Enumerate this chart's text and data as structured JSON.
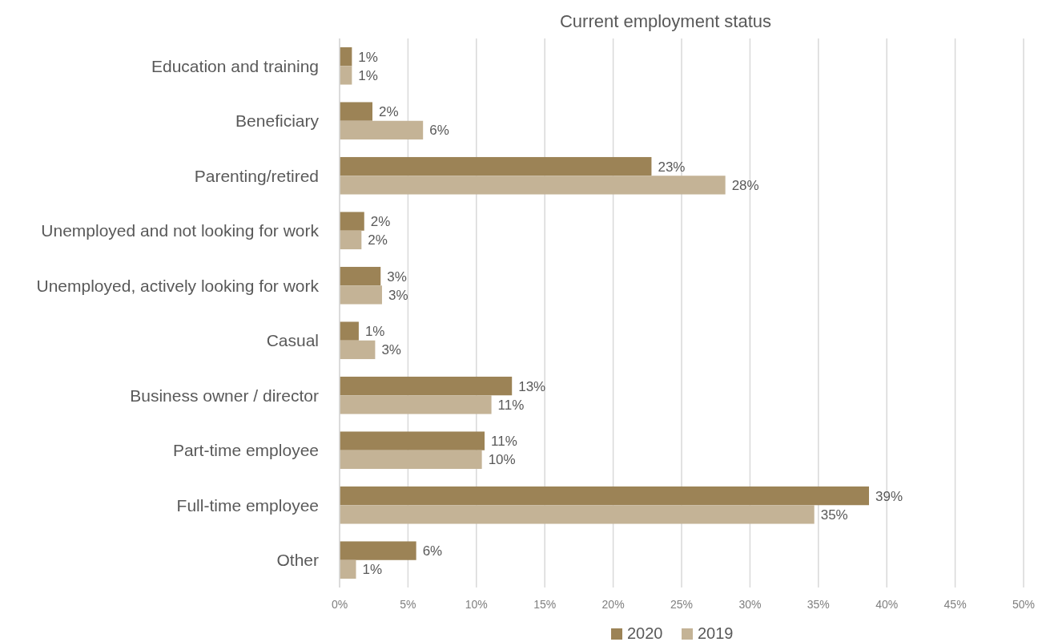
{
  "chart_data": {
    "type": "bar",
    "orientation": "horizontal",
    "title": "Current employment status",
    "categories": [
      "Education and training",
      "Beneficiary",
      "Parenting/retired",
      "Unemployed and not looking for work",
      "Unemployed, actively looking for work",
      "Casual",
      "Business owner / director",
      "Part-time employee",
      "Full-time employee",
      "Other"
    ],
    "series": [
      {
        "name": "2020",
        "color": "#9c8356",
        "values": [
          0.9,
          2.4,
          22.8,
          1.8,
          3.0,
          1.4,
          12.6,
          10.6,
          38.7,
          5.6
        ],
        "value_labels": [
          "1%",
          "2%",
          "23%",
          "2%",
          "3%",
          "1%",
          "13%",
          "11%",
          "39%",
          "6%"
        ]
      },
      {
        "name": "2019",
        "color": "#c4b396",
        "values": [
          0.9,
          6.1,
          28.2,
          1.6,
          3.1,
          2.6,
          11.1,
          10.4,
          34.7,
          1.2
        ],
        "value_labels": [
          "1%",
          "6%",
          "28%",
          "2%",
          "3%",
          "3%",
          "11%",
          "10%",
          "35%",
          "1%"
        ]
      }
    ],
    "xlim": [
      0,
      50
    ],
    "xticks": [
      {
        "value": 0,
        "label": "0%"
      },
      {
        "value": 5,
        "label": "5%"
      },
      {
        "value": 10,
        "label": "10%"
      },
      {
        "value": 15,
        "label": "15%"
      },
      {
        "value": 20,
        "label": "20%"
      },
      {
        "value": 25,
        "label": "25%"
      },
      {
        "value": 30,
        "label": "30%"
      },
      {
        "value": 35,
        "label": "35%"
      },
      {
        "value": 40,
        "label": "40%"
      },
      {
        "value": 45,
        "label": "45%"
      },
      {
        "value": 50,
        "label": "50%"
      }
    ],
    "grid": "x",
    "legend": "bottom"
  }
}
